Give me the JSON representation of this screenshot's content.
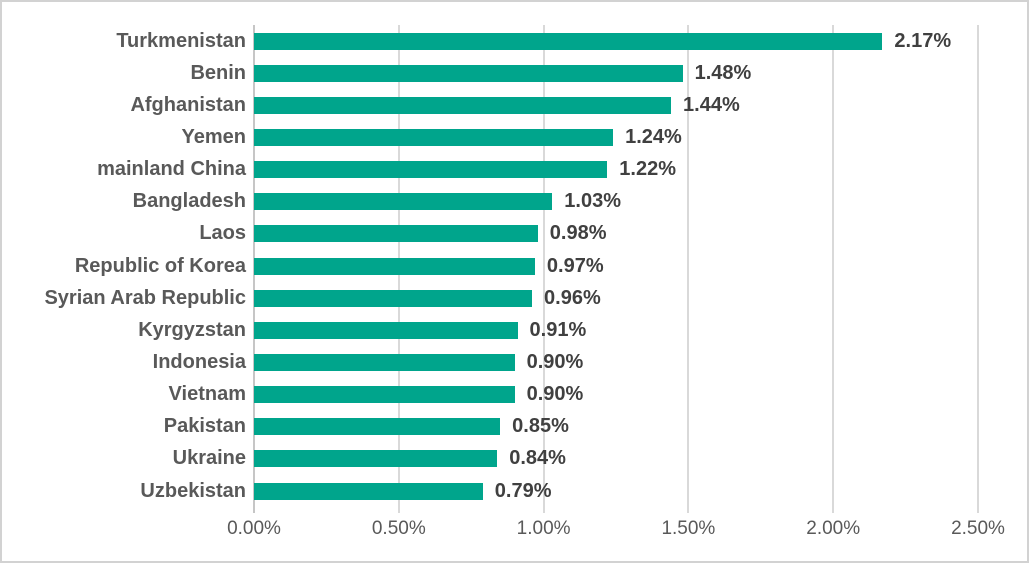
{
  "chart_data": {
    "type": "bar",
    "orientation": "horizontal",
    "title": "",
    "xlabel": "",
    "ylabel": "",
    "categories": [
      "Turkmenistan",
      "Benin",
      "Afghanistan",
      "Yemen",
      "mainland China",
      "Bangladesh",
      "Laos",
      "Republic of Korea",
      "Syrian Arab Republic",
      "Kyrgyzstan",
      "Indonesia",
      "Vietnam",
      "Pakistan",
      "Ukraine",
      "Uzbekistan"
    ],
    "values": [
      2.17,
      1.48,
      1.44,
      1.24,
      1.22,
      1.03,
      0.98,
      0.97,
      0.96,
      0.91,
      0.9,
      0.9,
      0.85,
      0.84,
      0.79
    ],
    "value_labels": [
      "2.17%",
      "1.48%",
      "1.44%",
      "1.24%",
      "1.22%",
      "1.03%",
      "0.98%",
      "0.97%",
      "0.96%",
      "0.91%",
      "0.90%",
      "0.90%",
      "0.85%",
      "0.84%",
      "0.79%"
    ],
    "x_ticks": [
      "0.00%",
      "0.50%",
      "1.00%",
      "1.50%",
      "2.00%",
      "2.50%"
    ],
    "x_tick_values": [
      0,
      0.5,
      1.0,
      1.5,
      2.0,
      2.5
    ],
    "xlim": [
      0,
      2.5
    ],
    "grid": "vertical",
    "legend": "none",
    "colors": {
      "bar": "#00a58c",
      "category_label": "#595959",
      "value_label": "#404040",
      "axis_tick_label": "#595959",
      "gridline": "#d9d9d9",
      "zero_axis_line": "#c6c6c6",
      "frame_border": "#d2d2d2",
      "background": "#ffffff"
    }
  }
}
